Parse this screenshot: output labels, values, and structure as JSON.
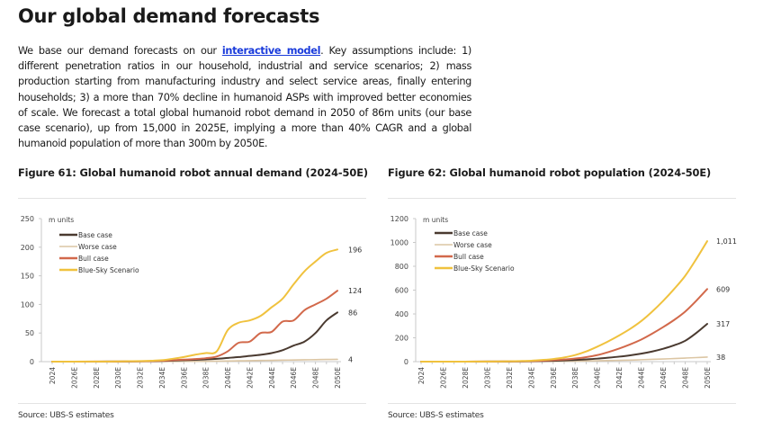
{
  "page": {
    "title": "Our global demand forecasts",
    "intro": {
      "before_link": "We base our demand forecasts on our ",
      "link_text": "interactive model",
      "after_link": ". Key assumptions include: 1) different penetration ratios in our household, industrial and service scenarios; 2) mass production starting from manufacturing industry and select service areas, finally entering households; 3) a more than 70% decline in humanoid ASPs with improved better economies of scale. We forecast a total global humanoid robot demand in 2050 of 86m units (our base case scenario), up from 15,000 in 2025E, implying a more than 40% CAGR and a global humanoid population of more than 300m by 2050E."
    }
  },
  "colors": {
    "base": "#4a3a30",
    "worse": "#dcc6a4",
    "bull": "#d2694b",
    "bluesky": "#f0c23e",
    "axis": "#c8c8c8",
    "link": "#1a3bdb"
  },
  "chart_data": [
    {
      "id": "fig61",
      "type": "line",
      "title": "Figure 61: Global humanoid robot annual demand (2024-50E)",
      "unit_label": "m units",
      "source": "Source: UBS-S estimates",
      "xlabel": "",
      "ylabel": "m units",
      "ylim": [
        0,
        250
      ],
      "yticks": [
        0,
        50,
        100,
        150,
        200,
        250
      ],
      "grid": false,
      "legend_position": "top-left",
      "x": [
        "2024",
        "2025E",
        "2026E",
        "2027E",
        "2028E",
        "2029E",
        "2030E",
        "2031E",
        "2032E",
        "2033E",
        "2034E",
        "2035E",
        "2036E",
        "2037E",
        "2038E",
        "2039E",
        "2040E",
        "2041E",
        "2042E",
        "2043E",
        "2044E",
        "2045E",
        "2046E",
        "2047E",
        "2048E",
        "2049E",
        "2050E"
      ],
      "xtick_labels": [
        "2024",
        "2026E",
        "2028E",
        "2030E",
        "2032E",
        "2034E",
        "2036E",
        "2038E",
        "2040E",
        "2042E",
        "2044E",
        "2046E",
        "2048E",
        "2050E"
      ],
      "series": [
        {
          "name": "Base case",
          "color_key": "base",
          "end_label": "86",
          "values": [
            0,
            0.015,
            0.03,
            0.05,
            0.08,
            0.12,
            0.2,
            0.3,
            0.5,
            0.8,
            1.2,
            1.8,
            2.5,
            3.2,
            4.0,
            5.0,
            6.5,
            8,
            10,
            12,
            15,
            20,
            28,
            35,
            50,
            72,
            86
          ]
        },
        {
          "name": "Worse case",
          "color_key": "worse",
          "end_label": "4",
          "values": [
            0,
            0.01,
            0.02,
            0.03,
            0.04,
            0.05,
            0.07,
            0.09,
            0.12,
            0.15,
            0.2,
            0.3,
            0.4,
            0.5,
            0.7,
            0.9,
            1.1,
            1.4,
            1.7,
            2.0,
            2.3,
            2.6,
            2.9,
            3.2,
            3.5,
            3.8,
            4
          ]
        },
        {
          "name": "Bull case",
          "color_key": "bull",
          "end_label": "124",
          "values": [
            0,
            0.02,
            0.04,
            0.07,
            0.1,
            0.15,
            0.25,
            0.4,
            0.6,
            1.0,
            1.5,
            2.5,
            3.5,
            4.5,
            6,
            9,
            18,
            33,
            35,
            50,
            52,
            70,
            72,
            90,
            100,
            110,
            124
          ]
        },
        {
          "name": "Blue-Sky Scenario",
          "color_key": "bluesky",
          "end_label": "196",
          "values": [
            0,
            0.03,
            0.06,
            0.1,
            0.15,
            0.25,
            0.4,
            0.7,
            1.0,
            1.5,
            2.5,
            5,
            8,
            12,
            15,
            18,
            55,
            68,
            72,
            80,
            95,
            110,
            135,
            158,
            175,
            190,
            196
          ]
        }
      ]
    },
    {
      "id": "fig62",
      "type": "line",
      "title": "Figure 62: Global humanoid robot population (2024-50E)",
      "unit_label": "m units",
      "source": "Source: UBS-S estimates",
      "xlabel": "",
      "ylabel": "m units",
      "ylim": [
        0,
        1200
      ],
      "yticks": [
        0,
        200,
        400,
        600,
        800,
        1000,
        1200
      ],
      "grid": false,
      "legend_position": "top-left",
      "x": [
        "2024",
        "2025E",
        "2026E",
        "2027E",
        "2028E",
        "2029E",
        "2030E",
        "2031E",
        "2032E",
        "2033E",
        "2034E",
        "2035E",
        "2036E",
        "2037E",
        "2038E",
        "2039E",
        "2040E",
        "2041E",
        "2042E",
        "2043E",
        "2044E",
        "2045E",
        "2046E",
        "2047E",
        "2048E",
        "2049E",
        "2050E"
      ],
      "xtick_labels": [
        "2024",
        "2026E",
        "2028E",
        "2030E",
        "2032E",
        "2034E",
        "2036E",
        "2038E",
        "2040E",
        "2042E",
        "2044E",
        "2046E",
        "2048E",
        "2050E"
      ],
      "series": [
        {
          "name": "Base case",
          "color_key": "base",
          "end_label": "317",
          "values": [
            0,
            0.02,
            0.05,
            0.1,
            0.2,
            0.3,
            0.5,
            0.8,
            1.3,
            2,
            3,
            5,
            7,
            10,
            14,
            19,
            25,
            33,
            42,
            53,
            67,
            85,
            108,
            137,
            175,
            240,
            317
          ]
        },
        {
          "name": "Worse case",
          "color_key": "worse",
          "end_label": "38",
          "values": [
            0,
            0.01,
            0.03,
            0.05,
            0.1,
            0.15,
            0.25,
            0.4,
            0.6,
            0.9,
            1.3,
            1.8,
            2.5,
            3.4,
            4.5,
            6,
            7.5,
            9,
            11,
            13,
            16,
            19,
            22,
            26,
            30,
            34,
            38
          ]
        },
        {
          "name": "Bull case",
          "color_key": "bull",
          "end_label": "609",
          "values": [
            0,
            0.03,
            0.07,
            0.15,
            0.3,
            0.5,
            0.8,
            1.3,
            2,
            3,
            5,
            8,
            12,
            18,
            26,
            38,
            55,
            80,
            110,
            145,
            185,
            235,
            290,
            350,
            420,
            510,
            609
          ]
        },
        {
          "name": "Blue-Sky Scenario",
          "color_key": "bluesky",
          "end_label": "1,011",
          "values": [
            0,
            0.04,
            0.1,
            0.2,
            0.4,
            0.7,
            1.2,
            2,
            3,
            5,
            8,
            14,
            22,
            35,
            55,
            85,
            125,
            170,
            220,
            275,
            340,
            420,
            510,
            610,
            720,
            860,
            1011
          ]
        }
      ]
    }
  ]
}
